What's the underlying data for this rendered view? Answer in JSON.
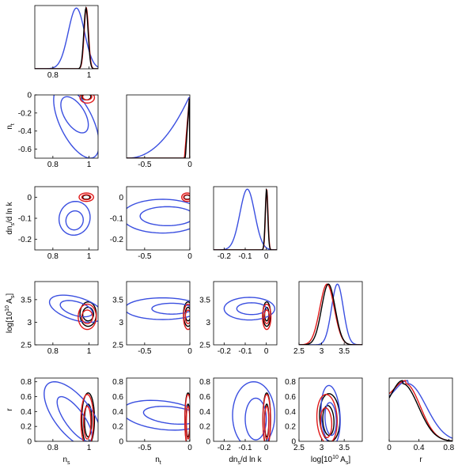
{
  "chart_data": {
    "type": "triangle",
    "series": [
      {
        "name": "",
        "color": "#3a4fe0"
      },
      {
        "name": "",
        "color": "#e01a1a"
      },
      {
        "name": "",
        "color": "#000000"
      }
    ],
    "parameters": [
      {
        "key": "ns",
        "label": "n",
        "sub": "s",
        "sup": "",
        "lim": [
          0.7,
          1.05
        ],
        "ticks": [
          {
            "v": 0.8,
            "t": "0.8"
          },
          {
            "v": 1.0,
            "t": "1"
          }
        ]
      },
      {
        "key": "nt",
        "label": "n",
        "sub": "t",
        "sup": "",
        "lim": [
          -0.7,
          0.0
        ],
        "ticks": [
          {
            "v": -0.5,
            "t": "-0.5"
          },
          {
            "v": 0.0,
            "t": "0"
          }
        ]
      },
      {
        "key": "dns",
        "label": "dn",
        "sub": "s",
        "suffix": "/d ln k",
        "sup": "",
        "lim": [
          -0.25,
          0.05
        ],
        "ticks": [
          {
            "v": -0.2,
            "t": "-0.2"
          },
          {
            "v": -0.1,
            "t": "-0.1"
          },
          {
            "v": 0.0,
            "t": "0"
          }
        ]
      },
      {
        "key": "As",
        "label": "log[10",
        "sup": "10",
        "label2": " A",
        "sub": "s",
        "suffix": "]",
        "lim": [
          2.5,
          3.9
        ],
        "ticks": [
          {
            "v": 2.5,
            "t": "2.5"
          },
          {
            "v": 3.0,
            "t": "3"
          },
          {
            "v": 3.5,
            "t": "3.5"
          }
        ]
      },
      {
        "key": "r",
        "label": "r",
        "sub": "",
        "sup": "",
        "lim": [
          0.0,
          0.85
        ],
        "ticks": [
          {
            "v": 0.0,
            "t": "0"
          },
          {
            "v": 0.4,
            "t": "0.4"
          },
          {
            "v": 0.8,
            "t": "0.8"
          }
        ]
      }
    ],
    "y_ticks": {
      "nt": [
        {
          "v": 0,
          "t": "0"
        },
        {
          "v": -0.2,
          "t": "-0.2"
        },
        {
          "v": -0.4,
          "t": "-0.4"
        },
        {
          "v": -0.6,
          "t": "-0.6"
        }
      ],
      "dns": [
        {
          "v": 0,
          "t": "0"
        },
        {
          "v": -0.1,
          "t": "-0.1"
        },
        {
          "v": -0.2,
          "t": "-0.2"
        }
      ],
      "As": [
        {
          "v": 3.5,
          "t": "3.5"
        },
        {
          "v": 3.0,
          "t": "3"
        },
        {
          "v": 2.5,
          "t": "2.5"
        }
      ],
      "r": [
        {
          "v": 0.8,
          "t": "0.8"
        },
        {
          "v": 0.6,
          "t": "0.6"
        },
        {
          "v": 0.4,
          "t": "0.4"
        },
        {
          "v": 0.2,
          "t": "0.2"
        },
        {
          "v": 0.0,
          "t": "0"
        }
      ]
    },
    "y_axis_labels": {
      "nt": {
        "label": "n",
        "sub": "t"
      },
      "dns": {
        "label": "dn",
        "sub": "s",
        "suffix": "/d ln k"
      },
      "As": {
        "label": "log[10",
        "sup": "10",
        "label2": " A",
        "sub": "s",
        "suffix": "]"
      },
      "r": {
        "label": "r",
        "sub": ""
      }
    },
    "marginals": {
      "ns": [
        {
          "series": 0,
          "mean": 0.93,
          "sd": 0.045
        },
        {
          "series": 1,
          "mean": 0.985,
          "sd": 0.012
        },
        {
          "series": 2,
          "mean": 0.983,
          "sd": 0.012
        }
      ],
      "nt": [
        {
          "series": 0,
          "shape": "rising",
          "start": -0.7,
          "end": -0.01
        },
        {
          "series": 1,
          "shape": "spike",
          "start": -0.06,
          "end": -0.005
        },
        {
          "series": 2,
          "shape": "spike",
          "start": -0.05,
          "end": -0.005
        }
      ],
      "dns": [
        {
          "series": 0,
          "mean": -0.09,
          "sd": 0.035
        },
        {
          "series": 1,
          "mean": 0.002,
          "sd": 0.006
        },
        {
          "series": 2,
          "mean": 0.001,
          "sd": 0.006
        }
      ],
      "As": [
        {
          "series": 0,
          "mean": 3.35,
          "sd": 0.13
        },
        {
          "series": 1,
          "mean": 3.12,
          "sd": 0.16
        },
        {
          "series": 2,
          "mean": 3.15,
          "sd": 0.15
        }
      ],
      "r": [
        {
          "series": 0,
          "peak": 0.25,
          "width": 0.35,
          "start": 0.6
        },
        {
          "series": 1,
          "peak": 0.22,
          "width": 0.28,
          "start": 0.7
        },
        {
          "series": 2,
          "peak": 0.18,
          "width": 0.3,
          "start": 0.45
        }
      ]
    },
    "contours": [
      {
        "x": "ns",
        "y": "nt",
        "series": 0,
        "ellipses": [
          [
            0.92,
            -0.22,
            0.05,
            0.2,
            0.3
          ],
          [
            0.93,
            -0.3,
            0.08,
            0.4,
            0.25
          ]
        ]
      },
      {
        "x": "ns",
        "y": "nt",
        "series": 1,
        "ellipses": [
          [
            0.99,
            -0.02,
            0.025,
            0.035,
            0
          ],
          [
            0.99,
            -0.03,
            0.04,
            0.06,
            0
          ]
        ]
      },
      {
        "x": "ns",
        "y": "nt",
        "series": 2,
        "ellipses": [
          [
            0.985,
            -0.02,
            0.025,
            0.035,
            0
          ]
        ]
      },
      {
        "x": "ns",
        "y": "dns",
        "series": 0,
        "ellipses": [
          [
            0.92,
            -0.11,
            0.05,
            0.045,
            0.7
          ],
          [
            0.92,
            -0.1,
            0.09,
            0.08,
            0.7
          ]
        ]
      },
      {
        "x": "ns",
        "y": "dns",
        "series": 1,
        "ellipses": [
          [
            0.985,
            0.0,
            0.025,
            0.012,
            0
          ],
          [
            0.985,
            0.0,
            0.04,
            0.02,
            0
          ]
        ]
      },
      {
        "x": "ns",
        "y": "dns",
        "series": 2,
        "ellipses": [
          [
            0.985,
            0.0,
            0.02,
            0.01,
            0
          ]
        ]
      },
      {
        "x": "nt",
        "y": "dns",
        "series": 0,
        "ellipses": [
          [
            -0.25,
            -0.09,
            0.3,
            0.045,
            0
          ],
          [
            -0.3,
            -0.09,
            0.45,
            0.08,
            0
          ]
        ]
      },
      {
        "x": "nt",
        "y": "dns",
        "series": 1,
        "ellipses": [
          [
            -0.03,
            0.0,
            0.04,
            0.012,
            0
          ],
          [
            -0.03,
            0.0,
            0.06,
            0.02,
            0
          ]
        ]
      },
      {
        "x": "nt",
        "y": "dns",
        "series": 2,
        "ellipses": [
          [
            -0.03,
            0.0,
            0.035,
            0.01,
            0
          ]
        ]
      },
      {
        "x": "ns",
        "y": "As",
        "series": 0,
        "ellipses": [
          [
            0.93,
            3.3,
            0.06,
            0.18,
            0.4
          ],
          [
            0.93,
            3.3,
            0.1,
            0.3,
            0.4
          ]
        ]
      },
      {
        "x": "ns",
        "y": "As",
        "series": 1,
        "ellipses": [
          [
            0.99,
            3.12,
            0.03,
            0.15,
            0
          ],
          [
            0.99,
            3.12,
            0.05,
            0.28,
            0
          ]
        ]
      },
      {
        "x": "ns",
        "y": "As",
        "series": 2,
        "ellipses": [
          [
            0.995,
            3.18,
            0.03,
            0.15,
            0
          ],
          [
            0.995,
            3.18,
            0.045,
            0.27,
            0
          ]
        ]
      },
      {
        "x": "nt",
        "y": "As",
        "series": 0,
        "ellipses": [
          [
            -0.2,
            3.3,
            0.22,
            0.12,
            0
          ],
          [
            -0.3,
            3.3,
            0.42,
            0.24,
            0
          ]
        ]
      },
      {
        "x": "nt",
        "y": "As",
        "series": 1,
        "ellipses": [
          [
            -0.02,
            3.12,
            0.03,
            0.15,
            0
          ],
          [
            -0.02,
            3.12,
            0.05,
            0.28,
            0
          ]
        ]
      },
      {
        "x": "nt",
        "y": "As",
        "series": 2,
        "ellipses": [
          [
            -0.02,
            3.18,
            0.03,
            0.15,
            0
          ],
          [
            -0.02,
            3.18,
            0.05,
            0.27,
            0
          ]
        ]
      },
      {
        "x": "dns",
        "y": "As",
        "series": 0,
        "ellipses": [
          [
            -0.07,
            3.3,
            0.07,
            0.13,
            0
          ],
          [
            -0.08,
            3.3,
            0.12,
            0.25,
            0
          ]
        ]
      },
      {
        "x": "dns",
        "y": "As",
        "series": 1,
        "ellipses": [
          [
            0.002,
            3.12,
            0.012,
            0.15,
            0
          ],
          [
            0.002,
            3.12,
            0.02,
            0.28,
            0
          ]
        ]
      },
      {
        "x": "dns",
        "y": "As",
        "series": 2,
        "ellipses": [
          [
            0.002,
            3.18,
            0.01,
            0.15,
            0
          ],
          [
            0.002,
            3.18,
            0.018,
            0.27,
            0
          ]
        ]
      },
      {
        "x": "ns",
        "y": "r",
        "series": 0,
        "ellipses": [
          [
            0.92,
            0.3,
            0.04,
            0.3,
            0.3
          ],
          [
            0.91,
            0.35,
            0.09,
            0.45,
            0.3
          ]
        ]
      },
      {
        "x": "ns",
        "y": "r",
        "series": 1,
        "ellipses": [
          [
            0.99,
            0.25,
            0.02,
            0.22,
            0
          ],
          [
            0.99,
            0.28,
            0.035,
            0.35,
            0
          ]
        ]
      },
      {
        "x": "ns",
        "y": "r",
        "series": 2,
        "ellipses": [
          [
            0.995,
            0.28,
            0.02,
            0.22,
            0
          ],
          [
            0.995,
            0.3,
            0.035,
            0.35,
            0
          ]
        ]
      },
      {
        "x": "nt",
        "y": "r",
        "series": 0,
        "ellipses": [
          [
            -0.2,
            0.35,
            0.35,
            0.12,
            -0.5
          ],
          [
            -0.3,
            0.35,
            0.5,
            0.2,
            -0.5
          ]
        ]
      },
      {
        "x": "nt",
        "y": "r",
        "series": 1,
        "ellipses": [
          [
            -0.02,
            0.25,
            0.02,
            0.22,
            0
          ],
          [
            -0.02,
            0.28,
            0.035,
            0.35,
            0
          ]
        ]
      },
      {
        "x": "nt",
        "y": "r",
        "series": 2,
        "ellipses": [
          [
            -0.02,
            0.28,
            0.02,
            0.22,
            0
          ],
          [
            -0.02,
            0.3,
            0.035,
            0.35,
            0
          ]
        ]
      },
      {
        "x": "dns",
        "y": "r",
        "series": 0,
        "ellipses": [
          [
            -0.05,
            0.3,
            0.05,
            0.28,
            0
          ],
          [
            -0.06,
            0.35,
            0.1,
            0.45,
            0
          ]
        ]
      },
      {
        "x": "dns",
        "y": "r",
        "series": 1,
        "ellipses": [
          [
            0.002,
            0.25,
            0.01,
            0.22,
            0
          ],
          [
            0.002,
            0.28,
            0.018,
            0.35,
            0
          ]
        ]
      },
      {
        "x": "dns",
        "y": "r",
        "series": 2,
        "ellipses": [
          [
            0.002,
            0.28,
            0.01,
            0.22,
            0
          ],
          [
            0.002,
            0.3,
            0.018,
            0.35,
            0
          ]
        ]
      },
      {
        "x": "As",
        "y": "r",
        "series": 0,
        "ellipses": [
          [
            3.2,
            0.3,
            0.12,
            0.22,
            0.2
          ],
          [
            3.2,
            0.35,
            0.2,
            0.4,
            0.2
          ]
        ]
      },
      {
        "x": "As",
        "y": "r",
        "series": 1,
        "ellipses": [
          [
            3.1,
            0.25,
            0.12,
            0.2,
            0.2
          ],
          [
            3.12,
            0.3,
            0.22,
            0.33,
            0.2
          ]
        ]
      },
      {
        "x": "As",
        "y": "r",
        "series": 2,
        "ellipses": [
          [
            3.15,
            0.28,
            0.12,
            0.2,
            0.2
          ],
          [
            3.18,
            0.32,
            0.22,
            0.32,
            0.2
          ]
        ]
      }
    ]
  }
}
